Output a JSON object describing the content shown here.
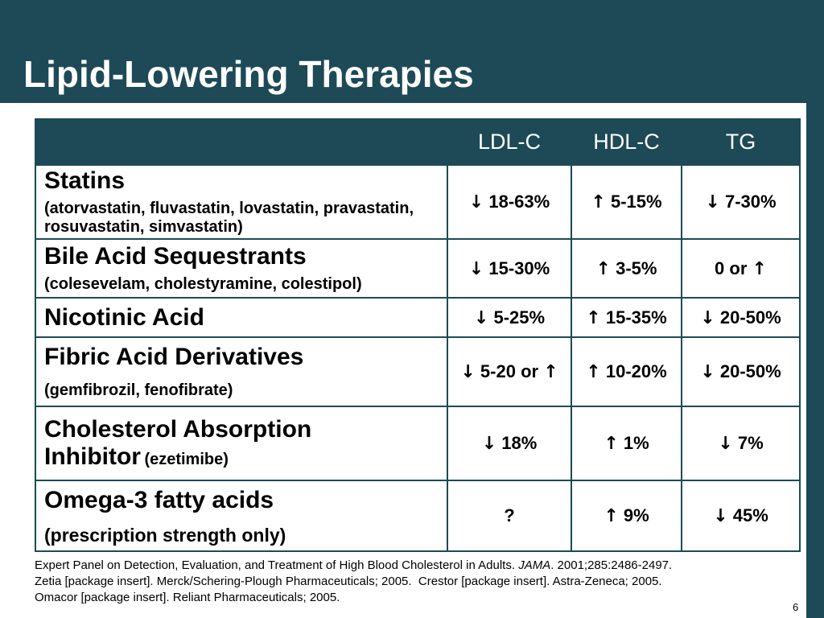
{
  "slide": {
    "title": "Lipid-Lowering Therapies",
    "page_number": "6"
  },
  "table": {
    "headers": [
      "",
      "LDL-C",
      "HDL-C",
      "TG"
    ],
    "rows": [
      {
        "name": "Statins",
        "sub": "(atorvastatin, fluvastatin, lovastatin, pravastatin, rosuvastatin, simvastatin)",
        "ldl": {
          "arrow": "↓",
          "value": "18-63%"
        },
        "hdl": {
          "arrow": "↑",
          "value": "5-15%"
        },
        "tg": {
          "arrow": "↓",
          "value": "7-30%"
        }
      },
      {
        "name": "Bile Acid Sequestrants",
        "sub": "(colesevelam, cholestyramine, colestipol)",
        "ldl": {
          "arrow": "↓",
          "value": "15-30%"
        },
        "hdl": {
          "arrow": "↑",
          "value": "3-5%"
        },
        "tg": {
          "value": "0 or",
          "arrow": "↑"
        }
      },
      {
        "name": "Nicotinic Acid",
        "ldl": {
          "arrow": "↓",
          "value": "5-25%"
        },
        "hdl": {
          "arrow": "↑",
          "value": "15-35%"
        },
        "tg": {
          "arrow": "↓",
          "value": "20-50%"
        }
      },
      {
        "name": "Fibric Acid Derivatives",
        "sub": "(gemfibrozil, fenofibrate)",
        "ldl": {
          "arrow": "↓",
          "value": "5-20 or",
          "arrow2": "↑"
        },
        "hdl": {
          "arrow": "↑",
          "value": "10-20%"
        },
        "tg": {
          "arrow": "↓",
          "value": "20-50%"
        }
      },
      {
        "name_line1": "Cholesterol Absorption",
        "name_line2": "Inhibitor",
        "sub": "(ezetimibe)",
        "ldl": {
          "arrow": "↓",
          "value": "18%"
        },
        "hdl": {
          "arrow": "↑",
          "value": "1%"
        },
        "tg": {
          "arrow": "↓",
          "value": "7%"
        }
      },
      {
        "name": "Omega-3 fatty acids",
        "sub": "(prescription strength only)",
        "ldl": {
          "value": "?"
        },
        "hdl": {
          "arrow": "↑",
          "value": "9%"
        },
        "tg": {
          "arrow": "↓",
          "value": "45%"
        }
      }
    ]
  },
  "references": {
    "line1_before": "Expert Panel on Detection, Evaluation, and Treatment of High Blood Cholesterol in Adults. ",
    "line1_journal": "JAMA",
    "line1_after": ". 2001;285:2486-2497.",
    "line2": "Zetia [package insert]. Merck/Schering-Plough Pharmaceuticals; 2005.  Crestor [package insert]. Astra-Zeneca; 2005.",
    "line3": "Omacor [package insert]. Reliant Pharmaceuticals; 2005."
  },
  "colors": {
    "brand_teal": "#1d4a56",
    "background": "#ffffff"
  }
}
